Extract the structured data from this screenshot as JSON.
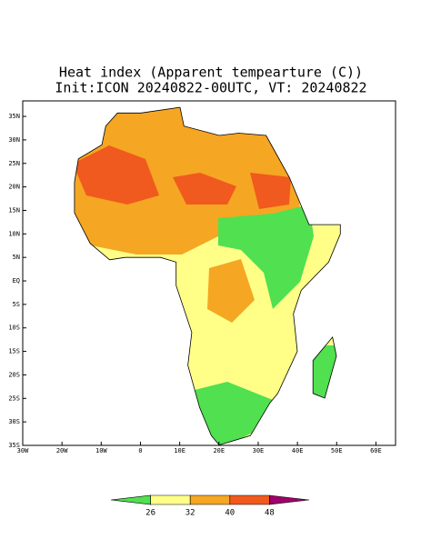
{
  "title": "Heat index (Apparent tempearture (C))",
  "subtitle": "Init:ICON 20240822-00UTC, VT: 20240822",
  "map": {
    "xlim": [
      -30,
      65
    ],
    "ylim": [
      -35,
      38.3
    ],
    "xticks": [
      {
        "value": -30,
        "label": "30W"
      },
      {
        "value": -20,
        "label": "20W"
      },
      {
        "value": -10,
        "label": "10W"
      },
      0,
      {
        "value": 10,
        "label": "10E"
      },
      {
        "value": 20,
        "label": "20E"
      },
      {
        "value": 30,
        "label": "30E"
      },
      {
        "value": 40,
        "label": "40E"
      },
      {
        "value": 50,
        "label": "50E"
      },
      {
        "value": 60,
        "label": "60E"
      }
    ],
    "yticks": [
      {
        "value": 35,
        "label": "35N"
      },
      {
        "value": 30,
        "label": "30N"
      },
      {
        "value": 25,
        "label": "25N"
      },
      {
        "value": 20,
        "label": "20N"
      },
      {
        "value": 15,
        "label": "15N"
      },
      {
        "value": 10,
        "label": "10N"
      },
      {
        "value": 5,
        "label": "5N"
      },
      {
        "value": 0,
        "label": "EQ"
      },
      {
        "value": -5,
        "label": "5S"
      },
      {
        "value": -10,
        "label": "10S"
      },
      {
        "value": -15,
        "label": "15S"
      },
      {
        "value": -20,
        "label": "20S"
      },
      {
        "value": -25,
        "label": "25S"
      },
      {
        "value": -30,
        "label": "30S"
      },
      {
        "value": -35,
        "label": "35S"
      }
    ]
  },
  "colorbar": {
    "levels": [
      26,
      32,
      40,
      48
    ],
    "colors": [
      "#50e050",
      "#ffff88",
      "#f5a623",
      "#f05a1e",
      "#a0006a"
    ]
  }
}
